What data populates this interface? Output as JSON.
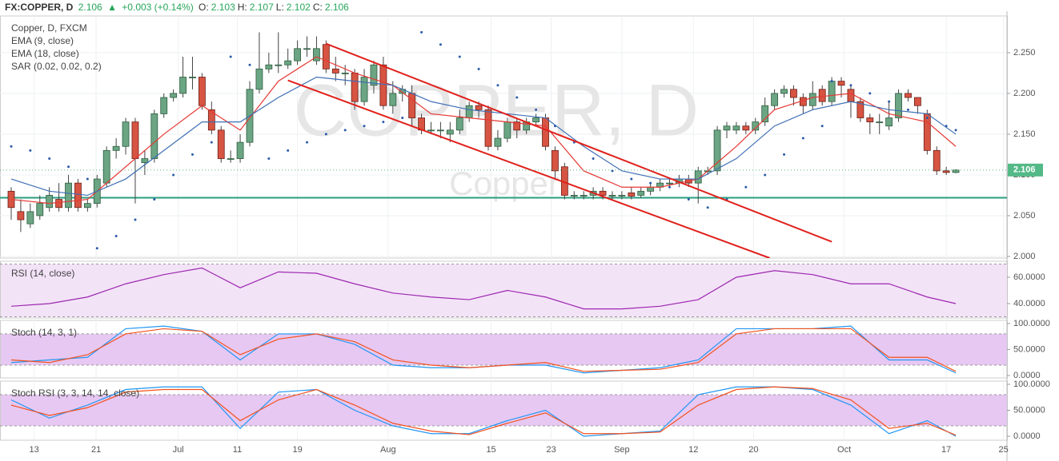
{
  "header": {
    "symbol": "FX:COPPER, D",
    "last": "2.106",
    "change": "+0.003 (+0.14%)",
    "ohlc": [
      {
        "label": "O:",
        "value": "2.103"
      },
      {
        "label": "H:",
        "value": "2.107"
      },
      {
        "label": "L:",
        "value": "2.102"
      },
      {
        "label": "C:",
        "value": "2.106"
      }
    ]
  },
  "chart_data": [
    {
      "type": "candlestick",
      "title": "Copper, D, FXCM",
      "legend": [
        "EMA (9, close)",
        "EMA (18, close)",
        "SAR (0.02, 0.02, 0.2)"
      ],
      "watermark": [
        "COPPER, D",
        "Copper"
      ],
      "colors": {
        "up": "#6ba583",
        "down": "#d75442"
      },
      "open": [
        2.08,
        2.055,
        2.04,
        2.05,
        2.06,
        2.07,
        2.06,
        2.09,
        2.06,
        2.065,
        2.09,
        2.13,
        2.135,
        2.165,
        2.115,
        2.12,
        2.175,
        2.195,
        2.2,
        2.22,
        2.22,
        2.18,
        2.155,
        2.12,
        2.12,
        2.14,
        2.205,
        2.23,
        2.235,
        2.235,
        2.24,
        2.255,
        2.24,
        2.26,
        2.23,
        2.225,
        2.225,
        2.19,
        2.21,
        2.235,
        2.185,
        2.2,
        2.2,
        2.17,
        2.155,
        2.155,
        2.15,
        2.155,
        2.17,
        2.185,
        2.18,
        2.135,
        2.145,
        2.165,
        2.155,
        2.165,
        2.17,
        2.13,
        2.11,
        2.075,
        2.075,
        2.075,
        2.08,
        2.075,
        2.075,
        2.078,
        2.075,
        2.08,
        2.085,
        2.09,
        2.09,
        2.095,
        2.09,
        2.105,
        2.105,
        2.155,
        2.155,
        2.16,
        2.155,
        2.165,
        2.185,
        2.2,
        2.205,
        2.195,
        2.185,
        2.205,
        2.19,
        2.215,
        2.205,
        2.19,
        2.17,
        2.165,
        2.16,
        2.17,
        2.2,
        2.195,
        2.175,
        2.13,
        2.105,
        2.103
      ],
      "high": [
        2.085,
        2.07,
        2.065,
        2.075,
        2.085,
        2.09,
        2.1,
        2.095,
        2.07,
        2.1,
        2.135,
        2.145,
        2.17,
        2.17,
        2.13,
        2.18,
        2.2,
        2.205,
        2.245,
        2.245,
        2.225,
        2.19,
        2.16,
        2.13,
        2.15,
        2.215,
        2.275,
        2.25,
        2.275,
        2.255,
        2.265,
        2.27,
        2.27,
        2.265,
        2.245,
        2.235,
        2.23,
        2.23,
        2.24,
        2.245,
        2.215,
        2.21,
        2.21,
        2.175,
        2.165,
        2.165,
        2.165,
        2.18,
        2.19,
        2.19,
        2.185,
        2.155,
        2.17,
        2.17,
        2.17,
        2.175,
        2.175,
        2.135,
        2.115,
        2.08,
        2.08,
        2.085,
        2.085,
        2.08,
        2.08,
        2.085,
        2.085,
        2.09,
        2.095,
        2.095,
        2.1,
        2.1,
        2.11,
        2.11,
        2.16,
        2.165,
        2.165,
        2.165,
        2.17,
        2.195,
        2.205,
        2.21,
        2.21,
        2.2,
        2.215,
        2.21,
        2.22,
        2.22,
        2.21,
        2.195,
        2.175,
        2.175,
        2.19,
        2.205,
        2.205,
        2.195,
        2.18,
        2.135,
        2.11,
        2.107
      ],
      "low": [
        2.045,
        2.03,
        2.035,
        2.045,
        2.055,
        2.055,
        2.055,
        2.055,
        2.055,
        2.06,
        2.085,
        2.12,
        2.125,
        2.065,
        2.1,
        2.115,
        2.17,
        2.19,
        2.195,
        2.205,
        2.18,
        2.15,
        2.115,
        2.115,
        2.115,
        2.135,
        2.2,
        2.225,
        2.225,
        2.23,
        2.235,
        2.245,
        2.235,
        2.225,
        2.215,
        2.21,
        2.18,
        2.185,
        2.2,
        2.18,
        2.175,
        2.19,
        2.16,
        2.15,
        2.15,
        2.145,
        2.14,
        2.15,
        2.165,
        2.17,
        2.13,
        2.13,
        2.14,
        2.145,
        2.15,
        2.16,
        2.13,
        2.095,
        2.07,
        2.07,
        2.07,
        2.07,
        2.07,
        2.07,
        2.07,
        2.07,
        2.072,
        2.075,
        2.08,
        2.085,
        2.085,
        2.085,
        2.065,
        2.1,
        2.1,
        2.145,
        2.15,
        2.15,
        2.15,
        2.16,
        2.18,
        2.195,
        2.185,
        2.175,
        2.18,
        2.185,
        2.185,
        2.195,
        2.17,
        2.165,
        2.15,
        2.15,
        2.155,
        2.165,
        2.19,
        2.175,
        2.125,
        2.1,
        2.1,
        2.102
      ],
      "close": [
        2.06,
        2.045,
        2.055,
        2.065,
        2.075,
        2.06,
        2.09,
        2.06,
        2.065,
        2.095,
        2.13,
        2.135,
        2.165,
        2.12,
        2.12,
        2.175,
        2.195,
        2.2,
        2.22,
        2.22,
        2.185,
        2.155,
        2.12,
        2.12,
        2.14,
        2.205,
        2.23,
        2.235,
        2.235,
        2.24,
        2.255,
        2.255,
        2.255,
        2.23,
        2.225,
        2.225,
        2.19,
        2.22,
        2.235,
        2.185,
        2.2,
        2.205,
        2.17,
        2.155,
        2.155,
        2.155,
        2.155,
        2.17,
        2.185,
        2.18,
        2.135,
        2.145,
        2.165,
        2.155,
        2.165,
        2.17,
        2.135,
        2.105,
        2.075,
        2.075,
        2.075,
        2.08,
        2.075,
        2.075,
        2.075,
        2.074,
        2.08,
        2.085,
        2.09,
        2.09,
        2.095,
        2.09,
        2.105,
        2.105,
        2.155,
        2.16,
        2.16,
        2.155,
        2.165,
        2.185,
        2.2,
        2.205,
        2.195,
        2.185,
        2.2,
        2.19,
        2.215,
        2.21,
        2.19,
        2.17,
        2.165,
        2.165,
        2.17,
        2.2,
        2.195,
        2.185,
        2.13,
        2.105,
        2.103,
        2.106
      ],
      "series": [
        {
          "style": "line",
          "color": "#e53935",
          "x": [
            0,
            4,
            8,
            12,
            16,
            20,
            24,
            28,
            32,
            36,
            40,
            44,
            48,
            52,
            56,
            60,
            64,
            68,
            72,
            76,
            80,
            84,
            88,
            92,
            96,
            99
          ],
          "values": [
            2.07,
            2.065,
            2.07,
            2.11,
            2.15,
            2.185,
            2.155,
            2.215,
            2.245,
            2.225,
            2.21,
            2.175,
            2.17,
            2.165,
            2.16,
            2.105,
            2.085,
            2.085,
            2.095,
            2.135,
            2.18,
            2.195,
            2.2,
            2.175,
            2.165,
            2.135
          ]
        },
        {
          "style": "line",
          "color": "#3f6fb5",
          "x": [
            0,
            4,
            8,
            12,
            16,
            20,
            24,
            28,
            32,
            36,
            40,
            44,
            48,
            52,
            56,
            60,
            64,
            68,
            72,
            76,
            80,
            84,
            88,
            92,
            96,
            99
          ],
          "values": [
            2.095,
            2.08,
            2.075,
            2.095,
            2.13,
            2.165,
            2.165,
            2.195,
            2.22,
            2.215,
            2.21,
            2.19,
            2.18,
            2.175,
            2.17,
            2.135,
            2.105,
            2.095,
            2.095,
            2.12,
            2.16,
            2.18,
            2.19,
            2.18,
            2.175,
            2.15
          ]
        },
        {
          "style": "dots",
          "color": "#2a5ba8",
          "x": [
            0,
            2,
            4,
            6,
            8,
            9,
            11,
            13,
            15,
            17,
            19,
            21,
            23,
            25,
            27,
            29,
            31,
            33,
            35,
            37,
            39,
            41,
            43,
            45,
            47,
            49,
            51,
            53,
            55,
            57,
            59,
            61,
            63,
            65,
            67,
            69,
            71,
            73,
            75,
            77,
            79,
            81,
            83,
            85,
            86,
            88,
            90,
            92,
            94,
            96,
            98,
            99
          ],
          "values": [
            2.135,
            2.13,
            2.12,
            2.11,
            2.095,
            2.01,
            2.025,
            2.045,
            2.07,
            2.1,
            2.125,
            2.14,
            2.245,
            2.235,
            2.12,
            2.13,
            2.14,
            2.15,
            2.155,
            2.16,
            2.165,
            2.17,
            2.275,
            2.26,
            2.245,
            2.23,
            2.21,
            2.195,
            2.18,
            2.16,
            2.14,
            2.12,
            2.105,
            2.095,
            2.09,
            2.085,
            2.07,
            2.06,
            2.07,
            2.085,
            2.1,
            2.125,
            2.145,
            2.16,
            2.215,
            2.21,
            2.2,
            2.19,
            2.18,
            2.17,
            2.16,
            2.155
          ]
        },
        {
          "style": "line",
          "color": "#e0201b",
          "x": [
            33,
            86
          ],
          "values": [
            2.261,
            2.018
          ]
        },
        {
          "style": "line",
          "color": "#e0201b",
          "x": [
            29,
            79.5
          ],
          "values": [
            2.216,
            1.998
          ]
        }
      ],
      "hlines": [
        {
          "value": 2.072,
          "color": "#2a9d7f"
        }
      ],
      "last_price": 2.106,
      "ylim": [
        1.998,
        2.295
      ],
      "yticks": [
        {
          "value": 2.0,
          "label": "2.000"
        },
        {
          "value": 2.05,
          "label": "2.050"
        },
        {
          "value": 2.1,
          "label": "2.100"
        },
        {
          "value": 2.15,
          "label": "2.150"
        },
        {
          "value": 2.2,
          "label": "2.200"
        },
        {
          "value": 2.25,
          "label": "2.250"
        }
      ]
    },
    {
      "type": "oscillator",
      "title": "RSI (14, close)",
      "band": [
        30,
        70
      ],
      "band_color": "#f3e3f7",
      "series": [
        {
          "style": "line",
          "color": "#9c27b0",
          "x": [
            0,
            4,
            8,
            12,
            16,
            20,
            24,
            28,
            32,
            36,
            40,
            44,
            48,
            52,
            56,
            60,
            64,
            68,
            72,
            76,
            80,
            84,
            88,
            92,
            96,
            99
          ],
          "values": [
            38,
            40,
            45,
            55,
            62,
            67,
            52,
            64,
            63,
            55,
            48,
            45,
            43,
            50,
            45,
            36,
            36,
            38,
            43,
            60,
            65,
            62,
            55,
            55,
            45,
            40
          ]
        }
      ],
      "ylim": [
        29.1,
        72.1
      ],
      "yticks": [
        {
          "value": 40,
          "label": "40.0000"
        },
        {
          "value": 60,
          "label": "60.0000"
        }
      ]
    },
    {
      "type": "oscillator",
      "title": "Stoch (14, 3, 1)",
      "band": [
        20,
        80
      ],
      "band_color": "#e6c8f2",
      "series": [
        {
          "style": "line",
          "color": "#2196f3",
          "x": [
            0,
            4,
            8,
            12,
            16,
            20,
            24,
            28,
            32,
            36,
            40,
            44,
            48,
            52,
            56,
            60,
            64,
            68,
            72,
            76,
            80,
            84,
            88,
            92,
            96,
            99
          ],
          "values": [
            25,
            30,
            35,
            90,
            95,
            85,
            30,
            80,
            80,
            60,
            20,
            15,
            15,
            20,
            20,
            5,
            10,
            15,
            30,
            90,
            90,
            90,
            95,
            30,
            30,
            5
          ]
        },
        {
          "style": "line",
          "color": "#f4511e",
          "x": [
            0,
            4,
            8,
            12,
            16,
            20,
            24,
            28,
            32,
            36,
            40,
            44,
            48,
            52,
            56,
            60,
            64,
            68,
            72,
            76,
            80,
            84,
            88,
            92,
            96,
            99
          ],
          "values": [
            30,
            25,
            40,
            80,
            90,
            85,
            40,
            70,
            80,
            65,
            30,
            20,
            15,
            20,
            25,
            8,
            10,
            12,
            25,
            80,
            90,
            90,
            90,
            35,
            35,
            8
          ]
        }
      ],
      "ylim": [
        -4.6,
        106
      ],
      "yticks": [
        {
          "value": 0,
          "label": "0.0000"
        },
        {
          "value": 50,
          "label": "50.0000"
        },
        {
          "value": 100,
          "label": "100.0000"
        }
      ]
    },
    {
      "type": "oscillator",
      "title": "Stoch RSI (3, 3, 14, 14, close)",
      "band": [
        20,
        80
      ],
      "band_color": "#e6c8f2",
      "series": [
        {
          "style": "line",
          "color": "#2196f3",
          "x": [
            0,
            4,
            8,
            12,
            16,
            20,
            24,
            28,
            32,
            36,
            40,
            44,
            48,
            52,
            56,
            60,
            64,
            68,
            72,
            76,
            80,
            84,
            88,
            92,
            96,
            99
          ],
          "values": [
            70,
            35,
            60,
            90,
            95,
            95,
            15,
            85,
            90,
            50,
            20,
            5,
            5,
            30,
            50,
            0,
            5,
            10,
            80,
            95,
            95,
            90,
            60,
            5,
            30,
            0
          ]
        },
        {
          "style": "line",
          "color": "#f4511e",
          "x": [
            0,
            4,
            8,
            12,
            16,
            20,
            24,
            28,
            32,
            36,
            40,
            44,
            48,
            52,
            56,
            60,
            64,
            68,
            72,
            76,
            80,
            84,
            88,
            92,
            96,
            99
          ],
          "values": [
            60,
            40,
            55,
            85,
            90,
            90,
            30,
            70,
            90,
            60,
            25,
            10,
            3,
            25,
            45,
            5,
            5,
            8,
            60,
            90,
            95,
            92,
            70,
            15,
            25,
            2
          ]
        }
      ],
      "ylim": [
        -7.7,
        106.2
      ],
      "yticks": [
        {
          "value": 0,
          "label": "0.0000"
        },
        {
          "value": 50,
          "label": "50.0000"
        },
        {
          "value": 100,
          "label": "100.0000"
        }
      ],
      "xticks": [
        {
          "value": 2.4,
          "label": "13"
        },
        {
          "value": 8.9,
          "label": "21"
        },
        {
          "value": 17.5,
          "label": "Jul"
        },
        {
          "value": 23.7,
          "label": "11"
        },
        {
          "value": 30,
          "label": "19"
        },
        {
          "value": 39.5,
          "label": "Aug"
        },
        {
          "value": 50.3,
          "label": "15"
        },
        {
          "value": 56.6,
          "label": "23"
        },
        {
          "value": 64,
          "label": "Sep"
        },
        {
          "value": 71.5,
          "label": "12"
        },
        {
          "value": 77.8,
          "label": "20"
        },
        {
          "value": 87.3,
          "label": "Oct"
        },
        {
          "value": 98,
          "label": "17"
        },
        {
          "value": 104,
          "label": "25"
        }
      ]
    }
  ]
}
